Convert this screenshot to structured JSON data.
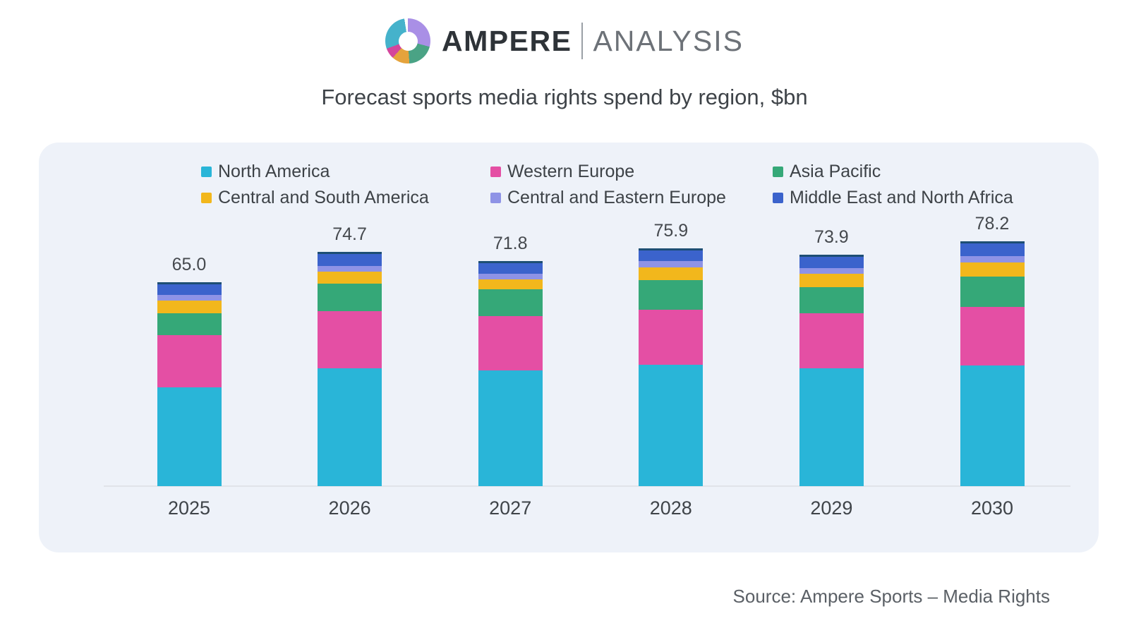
{
  "logo": {
    "brand": "AMPERE",
    "suffix": "ANALYSIS",
    "donut_icon_colors": [
      "#a98fe6",
      "#4aa385",
      "#e5a33c",
      "#d4459c",
      "#45b2cb"
    ]
  },
  "title": "Forecast sports media rights spend by region, $bn",
  "source": "Source: Ampere Sports – Media Rights",
  "chart_data": {
    "type": "bar",
    "stacked": true,
    "title": "Forecast sports media rights spend by region, $bn",
    "xlabel": "",
    "ylabel": "",
    "legend_position": "top",
    "grid": false,
    "categories": [
      "2025",
      "2026",
      "2027",
      "2028",
      "2029",
      "2030"
    ],
    "totals": [
      65.0,
      74.7,
      71.8,
      75.9,
      73.9,
      78.2
    ],
    "series": [
      {
        "name": "North America",
        "color": "#29b5d8",
        "values": [
          31.5,
          37.6,
          36.9,
          38.7,
          37.6,
          38.5
        ]
      },
      {
        "name": "Western Europe",
        "color": "#e44fa4",
        "values": [
          16.6,
          18.2,
          17.3,
          17.6,
          17.6,
          18.7
        ]
      },
      {
        "name": "Asia Pacific",
        "color": "#35a878",
        "values": [
          7.0,
          8.8,
          8.6,
          9.4,
          8.3,
          9.7
        ]
      },
      {
        "name": "Central and South America",
        "color": "#f2b71c",
        "values": [
          4.2,
          3.9,
          3.2,
          4.1,
          4.2,
          4.4
        ]
      },
      {
        "name": "Central and Eastern Europe",
        "color": "#8e93e6",
        "values": [
          1.8,
          1.8,
          1.8,
          2.1,
          1.9,
          2.2
        ]
      },
      {
        "name": "Middle East and North Africa",
        "color": "#3b63cc",
        "values": [
          3.9,
          4.4,
          4.0,
          4.0,
          4.3,
          4.7
        ]
      }
    ]
  }
}
